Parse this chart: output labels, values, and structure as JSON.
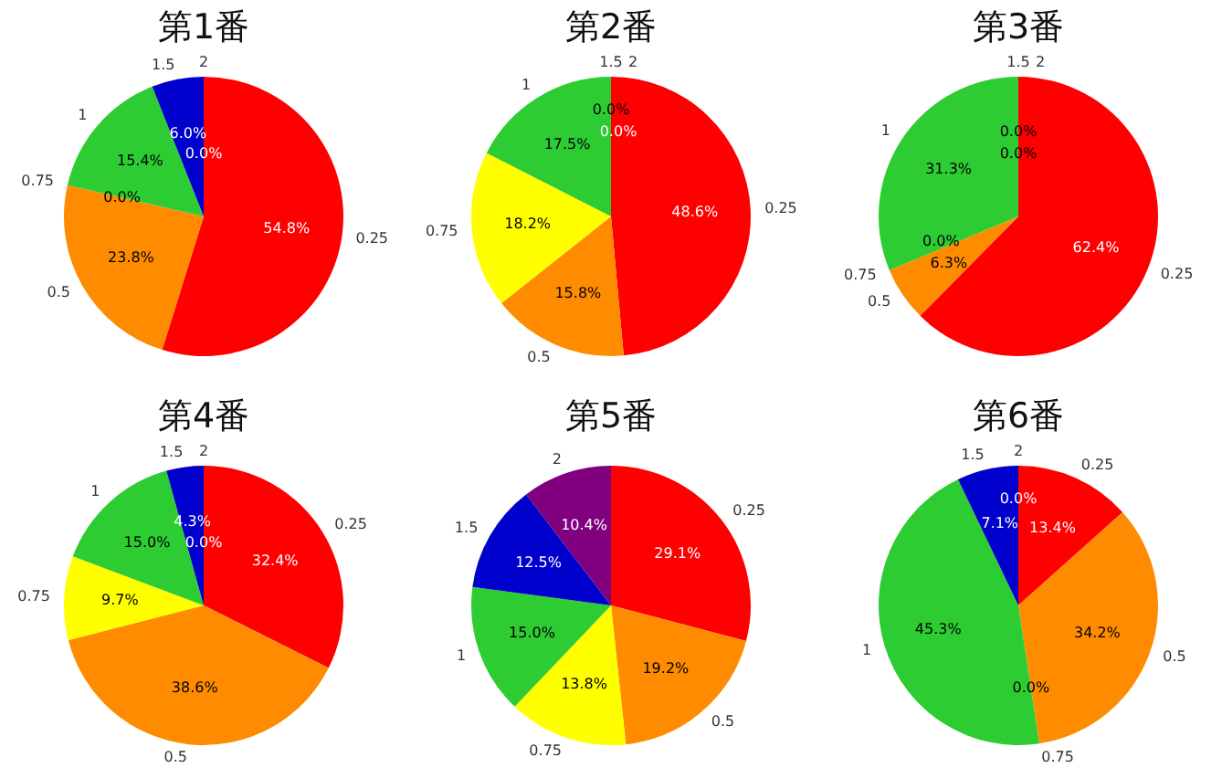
{
  "chart_data": [
    {
      "type": "pie",
      "title": "第1番",
      "categories": [
        "0.25",
        "0.5",
        "0.75",
        "1",
        "1.5",
        "2"
      ],
      "values": [
        54.8,
        23.8,
        0.0,
        15.4,
        6.0,
        0.0
      ],
      "value_labels": [
        "54.8%",
        "23.8%",
        "0.0%",
        "15.4%",
        "6.0%",
        "0.0%"
      ],
      "colors": [
        "#ff0000",
        "#ff8c00",
        "#ffff00",
        "#2ecc33",
        "#0000cc",
        "#800080"
      ]
    },
    {
      "type": "pie",
      "title": "第2番",
      "categories": [
        "0.25",
        "0.5",
        "0.75",
        "1",
        "1.5",
        "2"
      ],
      "values": [
        48.6,
        15.8,
        18.2,
        17.5,
        0.0,
        0.0
      ],
      "value_labels": [
        "48.6%",
        "15.8%",
        "18.2%",
        "17.5%",
        "0.0%",
        "0.0%"
      ],
      "colors": [
        "#ff0000",
        "#ff8c00",
        "#ffff00",
        "#2ecc33",
        "#0000cc",
        "#800080"
      ]
    },
    {
      "type": "pie",
      "title": "第3番",
      "categories": [
        "0.25",
        "0.5",
        "0.75",
        "1",
        "1.5",
        "2"
      ],
      "values": [
        62.4,
        6.3,
        0.0,
        31.3,
        0.0,
        0.0
      ],
      "value_labels": [
        "62.4%",
        "6.3%",
        "0.0%",
        "31.3%",
        "0.0%",
        "0.0%"
      ],
      "colors": [
        "#ff0000",
        "#ff8c00",
        "#ffff00",
        "#2ecc33",
        "#0000cc",
        "#800080"
      ]
    },
    {
      "type": "pie",
      "title": "第4番",
      "categories": [
        "0.25",
        "0.5",
        "0.75",
        "1",
        "1.5",
        "2"
      ],
      "values": [
        32.4,
        38.6,
        9.7,
        15.0,
        4.3,
        0.0
      ],
      "value_labels": [
        "32.4%",
        "38.6%",
        "9.7%",
        "15.0%",
        "4.3%",
        "0.0%"
      ],
      "colors": [
        "#ff0000",
        "#ff8c00",
        "#ffff00",
        "#2ecc33",
        "#0000cc",
        "#800080"
      ]
    },
    {
      "type": "pie",
      "title": "第5番",
      "categories": [
        "0.25",
        "0.5",
        "0.75",
        "1",
        "1.5",
        "2"
      ],
      "values": [
        29.1,
        19.2,
        13.8,
        15.0,
        12.5,
        10.4
      ],
      "value_labels": [
        "29.1%",
        "19.2%",
        "13.8%",
        "15.0%",
        "12.5%",
        "10.4%"
      ],
      "colors": [
        "#ff0000",
        "#ff8c00",
        "#ffff00",
        "#2ecc33",
        "#0000cc",
        "#800080"
      ]
    },
    {
      "type": "pie",
      "title": "第6番",
      "categories": [
        "0.25",
        "0.5",
        "0.75",
        "1",
        "1.5",
        "2"
      ],
      "values": [
        13.4,
        34.2,
        0.0,
        45.3,
        7.1,
        0.0
      ],
      "value_labels": [
        "13.4%",
        "34.2%",
        "0.0%",
        "45.3%",
        "7.1%",
        "0.0%"
      ],
      "colors": [
        "#ff0000",
        "#ff8c00",
        "#ffff00",
        "#2ecc33",
        "#0000cc",
        "#800080"
      ]
    }
  ]
}
